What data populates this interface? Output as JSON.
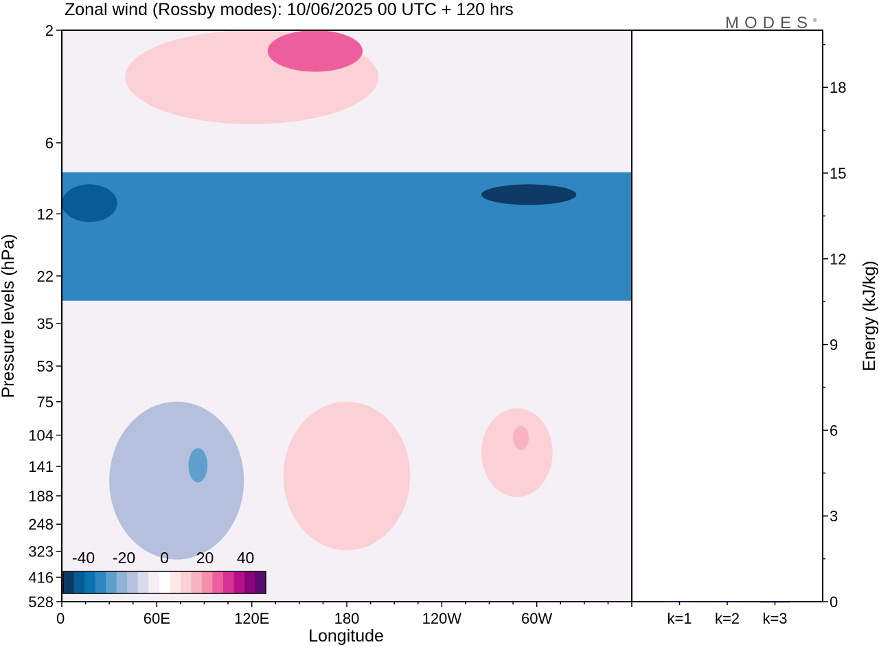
{
  "title": "Zonal wind (Rossby modes):  10/06/2025  00 UTC  + 120 hrs",
  "logo": "MODES",
  "logo_mark": "®",
  "chart_data": [
    {
      "type": "heatmap",
      "xlabel": "Longitude",
      "ylabel": "Pressure levels (hPa)",
      "x_ticks": [
        "0",
        "60E",
        "120E",
        "180",
        "120W",
        "60W"
      ],
      "x_tick_degrees": [
        0,
        60,
        120,
        180,
        240,
        300
      ],
      "xlim": [
        0,
        360
      ],
      "y_ticks": [
        "2",
        "6",
        "12",
        "22",
        "35",
        "53",
        "75",
        "104",
        "141",
        "188",
        "248",
        "323",
        "416",
        "528"
      ],
      "y_scale": "log",
      "ylim": [
        528,
        2
      ],
      "colorbar": {
        "tick_labels": [
          "-40",
          "-20",
          "0",
          "20",
          "40"
        ],
        "tick_values": [
          -40,
          -20,
          0,
          20,
          40
        ],
        "range": [
          -50,
          50
        ],
        "colors": [
          "#0d3b66",
          "#085b95",
          "#0a72b0",
          "#2f86c0",
          "#5e9fcb",
          "#8fb3d4",
          "#b5c0dd",
          "#d9dcec",
          "#f5eff6",
          "#ffffff",
          "#fde9e9",
          "#fbd1d6",
          "#f8b4c1",
          "#f48fab",
          "#ec5f9c",
          "#d83294",
          "#b70f87",
          "#8a0479",
          "#5b0a6e"
        ]
      },
      "regions": [
        {
          "feature": "weak negative background",
          "lon": [
            0,
            360
          ],
          "p": [
            2,
            528
          ],
          "u": -3
        },
        {
          "feature": "upper positive",
          "lon": [
            40,
            200
          ],
          "p": [
            2,
            5
          ],
          "u": 10
        },
        {
          "feature": "upper positive core",
          "lon": [
            130,
            190
          ],
          "p": [
            2,
            3
          ],
          "u": 25
        },
        {
          "feature": "easterly jet",
          "lon": [
            0,
            360
          ],
          "p": [
            8,
            28
          ],
          "u": -30
        },
        {
          "feature": "easterly core west",
          "lon": [
            0,
            35
          ],
          "p": [
            9,
            13
          ],
          "u": -40
        },
        {
          "feature": "easterly core east",
          "lon": [
            265,
            325
          ],
          "p": [
            9,
            11
          ],
          "u": -45
        },
        {
          "feature": "negative lower-level cell",
          "lon": [
            30,
            115
          ],
          "p": [
            75,
            350
          ],
          "u": -15
        },
        {
          "feature": "negative lower-level core",
          "lon": [
            80,
            92
          ],
          "p": [
            118,
            165
          ],
          "u": -25
        },
        {
          "feature": "positive lower-level band",
          "lon": [
            140,
            220
          ],
          "p": [
            75,
            320
          ],
          "u": 8
        },
        {
          "feature": "positive lower-level band east",
          "lon": [
            265,
            310
          ],
          "p": [
            80,
            190
          ],
          "u": 8
        },
        {
          "feature": "positive lower-level core east",
          "lon": [
            285,
            295
          ],
          "p": [
            95,
            120
          ],
          "u": 15
        }
      ]
    },
    {
      "type": "bar",
      "categories": [
        "k=1",
        "k=2",
        "k=3"
      ],
      "values": [
        0.02,
        0.01,
        0.005
      ],
      "ylabel": "Energy (kJ/kg)",
      "ylim": [
        0,
        20
      ],
      "y_ticks": [
        0,
        3,
        6,
        9,
        12,
        15,
        18
      ],
      "bar_color": "#1a1a5e"
    }
  ]
}
